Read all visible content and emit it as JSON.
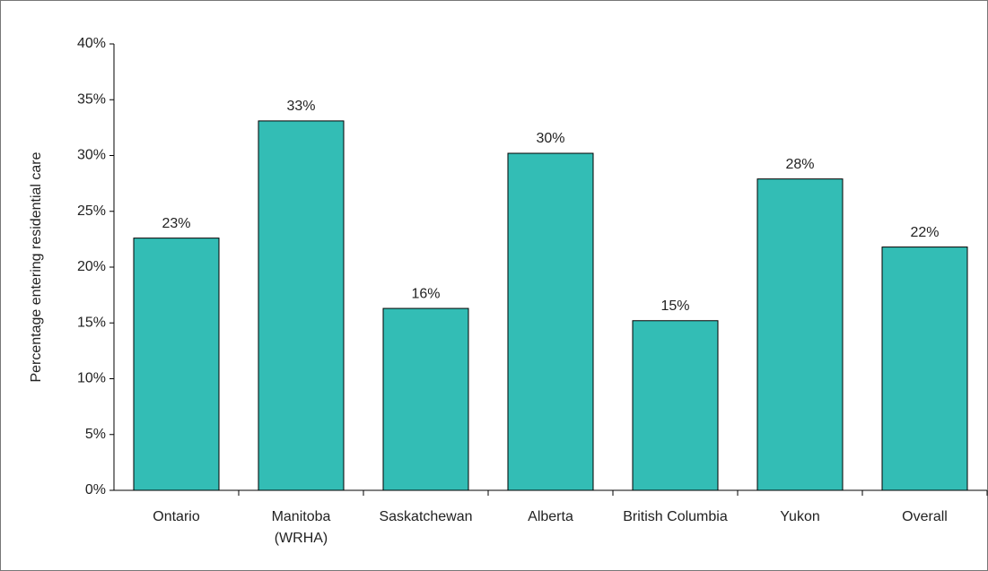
{
  "chart_data": {
    "type": "bar",
    "y_axis_label": "Percentage entering residential care",
    "categories": [
      "Ontario",
      "Manitoba\n(WRHA)",
      "Saskatchewan",
      "Alberta",
      "British Columbia",
      "Yukon",
      "Overall"
    ],
    "values": [
      22.6,
      33.1,
      16.3,
      30.2,
      15.2,
      27.9,
      21.8
    ],
    "value_labels": [
      "23%",
      "33%",
      "16%",
      "30%",
      "15%",
      "28%",
      "22%"
    ],
    "color": "#33bdb5",
    "ylim": [
      0,
      40
    ],
    "yticks": [
      {
        "value": 0,
        "label": "0%"
      },
      {
        "value": 5,
        "label": "5%"
      },
      {
        "value": 10,
        "label": "10%"
      },
      {
        "value": 15,
        "label": "15%"
      },
      {
        "value": 20,
        "label": "20%"
      },
      {
        "value": 25,
        "label": "25%"
      },
      {
        "value": 30,
        "label": "30%"
      },
      {
        "value": 35,
        "label": "35%"
      },
      {
        "value": 40,
        "label": "40%"
      }
    ],
    "grid": false
  }
}
